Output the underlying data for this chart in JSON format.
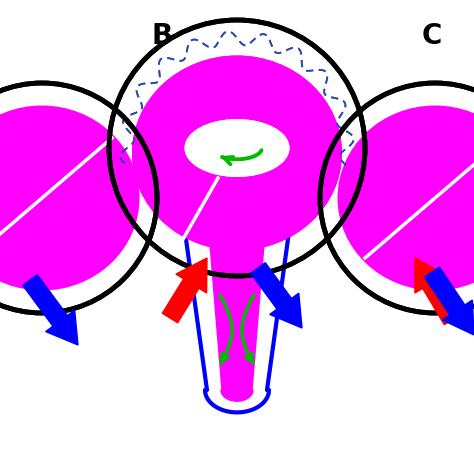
{
  "bg_color": "#ffffff",
  "magenta": "#FF00FF",
  "blue": "#0000FF",
  "red": "#FF0000",
  "green": "#00BB00",
  "black": "#000000",
  "label_B": "B",
  "label_C": "C",
  "label_fontsize": 20
}
